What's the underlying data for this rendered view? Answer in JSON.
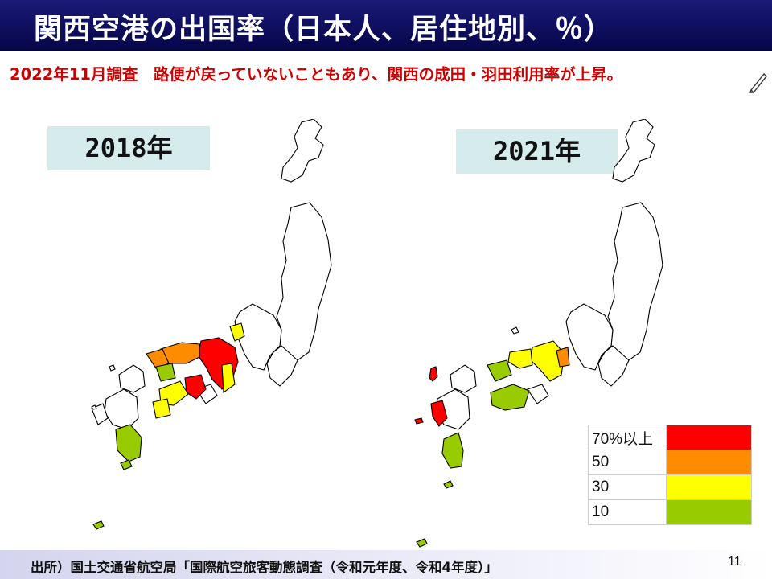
{
  "slide": {
    "title": "関西空港の出国率（日本人、居住地別、％）",
    "subtitle": "2022年11月調査　路便が戻っていないこともあり、関西の成田・羽田利用率が上昇。",
    "footer_source": "出所）国土交通省航空局「国際航空旅客動態調査（令和元年度、令和4年度）」",
    "page_number": "11"
  },
  "maps": [
    {
      "year_label": "2018年"
    },
    {
      "year_label": "2021年"
    }
  ],
  "legend": [
    {
      "label": "70%以上",
      "color": "#ff0000"
    },
    {
      "label": "50",
      "color": "#ff8c00"
    },
    {
      "label": "30",
      "color": "#ffff00"
    },
    {
      "label": "10",
      "color": "#99cc00"
    }
  ],
  "colors": {
    "title_bar": "#0a0a5a",
    "subtitle_text": "#cc0000",
    "year_label_bg": "#d5ebec"
  }
}
